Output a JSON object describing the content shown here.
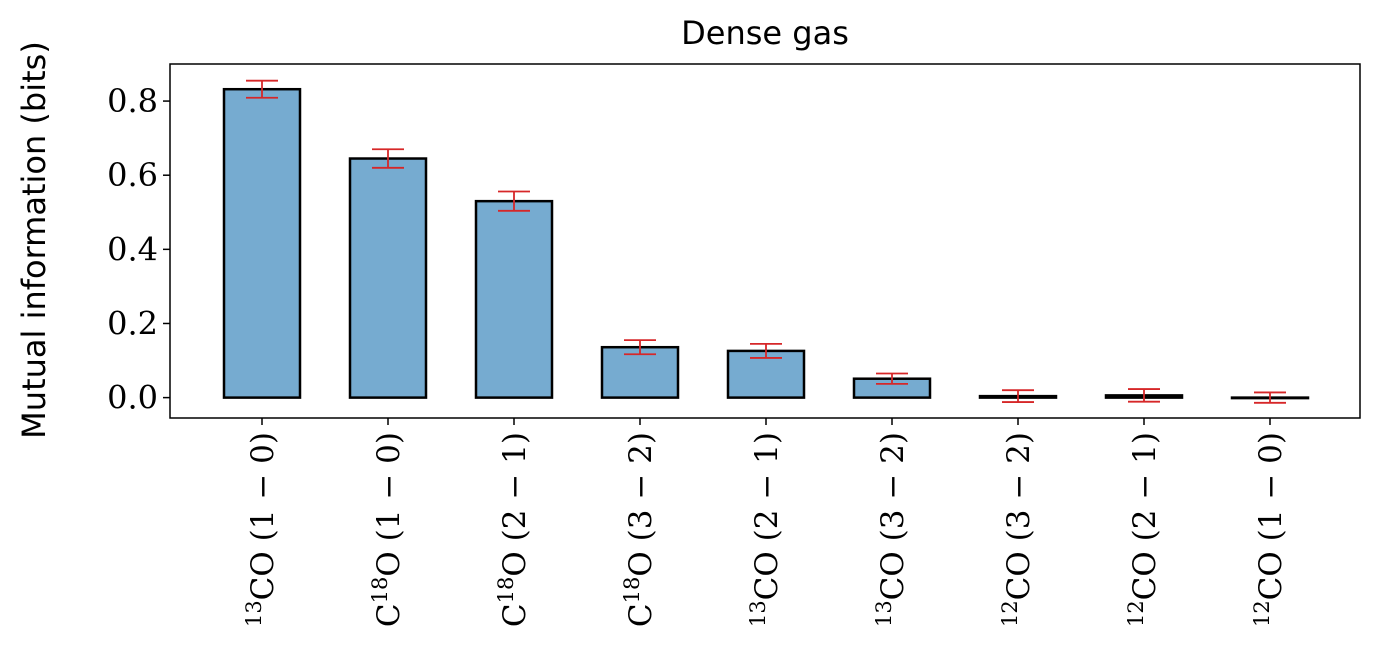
{
  "chart_data": {
    "type": "bar",
    "title": "Dense gas",
    "ylabel": "Mutual information (bits)",
    "xlabel": "",
    "ylim": [
      -0.055,
      0.9
    ],
    "yticks": [
      0.0,
      0.2,
      0.4,
      0.6,
      0.8
    ],
    "ytick_labels": [
      "0.0",
      "0.2",
      "0.4",
      "0.6",
      "0.8"
    ],
    "grid": false,
    "colors": {
      "bar_fill": "#76abd0",
      "bar_edge": "#000000",
      "errorbar": "#d62728"
    },
    "categories": [
      {
        "pre": "",
        "sup": "13",
        "base": "CO",
        "sup2": "",
        "end": "",
        "transition": " (1 − 0)"
      },
      {
        "pre": "C",
        "sup": "18",
        "base": "O",
        "sup2": "",
        "end": "",
        "transition": " (1 − 0)"
      },
      {
        "pre": "C",
        "sup": "18",
        "base": "O",
        "sup2": "",
        "end": "",
        "transition": " (2 − 1)"
      },
      {
        "pre": "C",
        "sup": "18",
        "base": "O",
        "sup2": "",
        "end": "",
        "transition": " (3 − 2)"
      },
      {
        "pre": "",
        "sup": "13",
        "base": "CO",
        "sup2": "",
        "end": "",
        "transition": " (2 − 1)"
      },
      {
        "pre": "",
        "sup": "13",
        "base": "CO",
        "sup2": "",
        "end": "",
        "transition": " (3 − 2)"
      },
      {
        "pre": "",
        "sup": "12",
        "base": "CO",
        "sup2": "",
        "end": "",
        "transition": " (3 − 2)"
      },
      {
        "pre": "",
        "sup": "12",
        "base": "CO",
        "sup2": "",
        "end": "",
        "transition": " (2 − 1)"
      },
      {
        "pre": "",
        "sup": "12",
        "base": "CO",
        "sup2": "",
        "end": "",
        "transition": " (1 − 0)"
      }
    ],
    "values": [
      0.832,
      0.645,
      0.53,
      0.136,
      0.126,
      0.051,
      0.004,
      0.006,
      0.0
    ],
    "errors": [
      0.023,
      0.025,
      0.026,
      0.019,
      0.019,
      0.014,
      0.016,
      0.017,
      0.014
    ]
  }
}
